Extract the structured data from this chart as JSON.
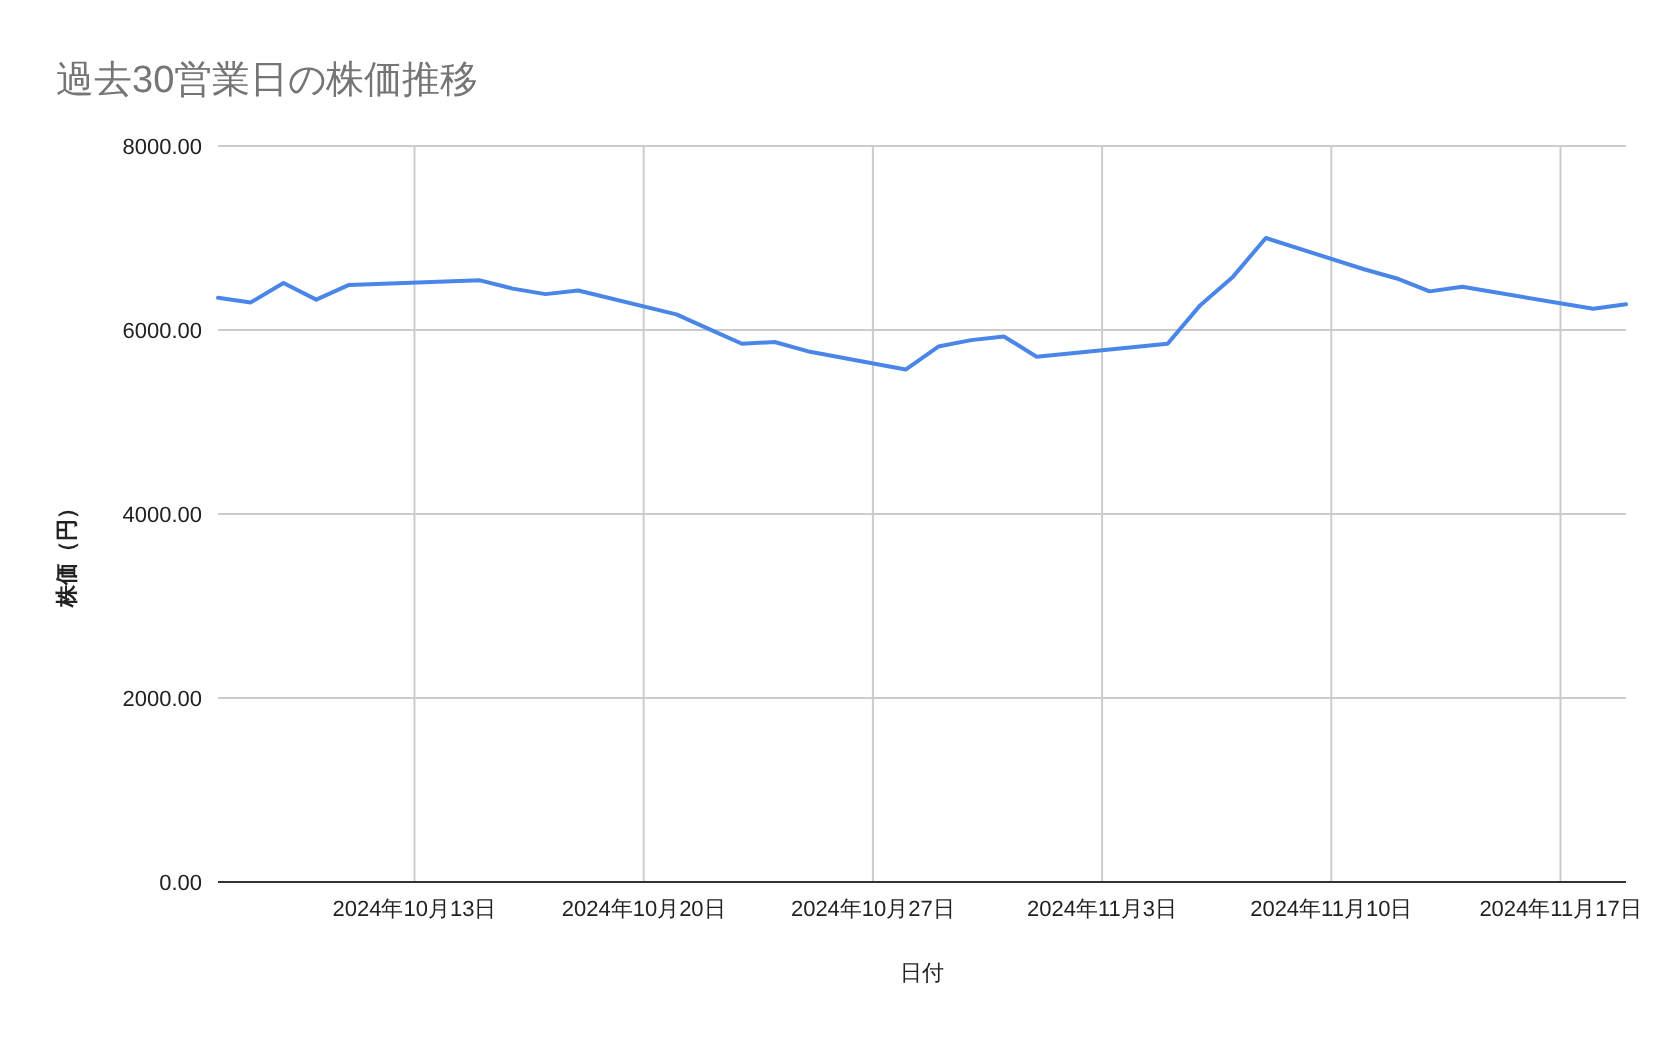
{
  "chart_data": {
    "type": "line",
    "title": "過去30営業日の株価推移",
    "xlabel": "日付",
    "ylabel": "株価（円）",
    "x": [
      "2024-10-07",
      "2024-10-08",
      "2024-10-09",
      "2024-10-10",
      "2024-10-11",
      "2024-10-15",
      "2024-10-16",
      "2024-10-17",
      "2024-10-18",
      "2024-10-21",
      "2024-10-22",
      "2024-10-23",
      "2024-10-24",
      "2024-10-25",
      "2024-10-28",
      "2024-10-29",
      "2024-10-30",
      "2024-10-31",
      "2024-11-01",
      "2024-11-05",
      "2024-11-06",
      "2024-11-07",
      "2024-11-08",
      "2024-11-11",
      "2024-11-12",
      "2024-11-13",
      "2024-11-14",
      "2024-11-15",
      "2024-11-18",
      "2024-11-19"
    ],
    "series": [
      {
        "color": "#4a86e8",
        "values": [
          6350,
          6300,
          6510,
          6330,
          6490,
          6540,
          6450,
          6390,
          6430,
          6170,
          6010,
          5850,
          5870,
          5770,
          5570,
          5820,
          5890,
          5930,
          5710,
          5850,
          6270,
          6580,
          7000,
          6660,
          6560,
          6420,
          6470,
          6410,
          6230,
          6280
        ]
      }
    ],
    "xlim": [
      "2024-10-07",
      "2024-11-19"
    ],
    "xticks": [
      {
        "value": "2024-10-13",
        "label": "2024年10月13日"
      },
      {
        "value": "2024-10-20",
        "label": "2024年10月20日"
      },
      {
        "value": "2024-10-27",
        "label": "2024年10月27日"
      },
      {
        "value": "2024-11-03",
        "label": "2024年11月3日"
      },
      {
        "value": "2024-11-10",
        "label": "2024年11月10日"
      },
      {
        "value": "2024-11-17",
        "label": "2024年11月17日"
      }
    ],
    "ylim": [
      0,
      8000
    ],
    "yticks": [
      {
        "value": 0,
        "label": "0.00"
      },
      {
        "value": 2000,
        "label": "2000.00"
      },
      {
        "value": 4000,
        "label": "4000.00"
      },
      {
        "value": 6000,
        "label": "6000.00"
      },
      {
        "value": 8000,
        "label": "8000.00"
      }
    ],
    "grid": true
  }
}
